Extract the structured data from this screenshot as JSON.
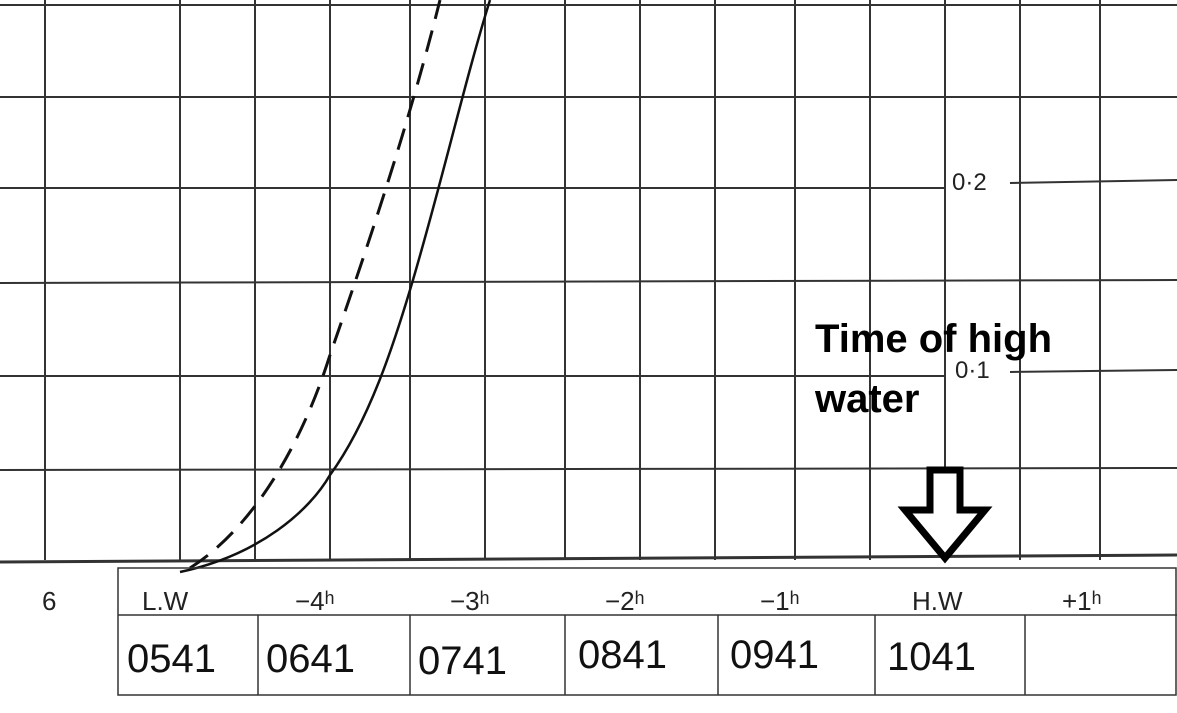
{
  "axis_labels": [
    "0·2",
    "0·1"
  ],
  "hour_labels": [
    "6",
    "L.W",
    "−4ʰ",
    "−3ʰ",
    "−2ʰ",
    "−1ʰ",
    "H.W",
    "+1ʰ"
  ],
  "times": [
    "0541",
    "0641",
    "0741",
    "0841",
    "0941",
    "1041"
  ],
  "annotation": {
    "line1": "Time of high",
    "line2": "water"
  }
}
